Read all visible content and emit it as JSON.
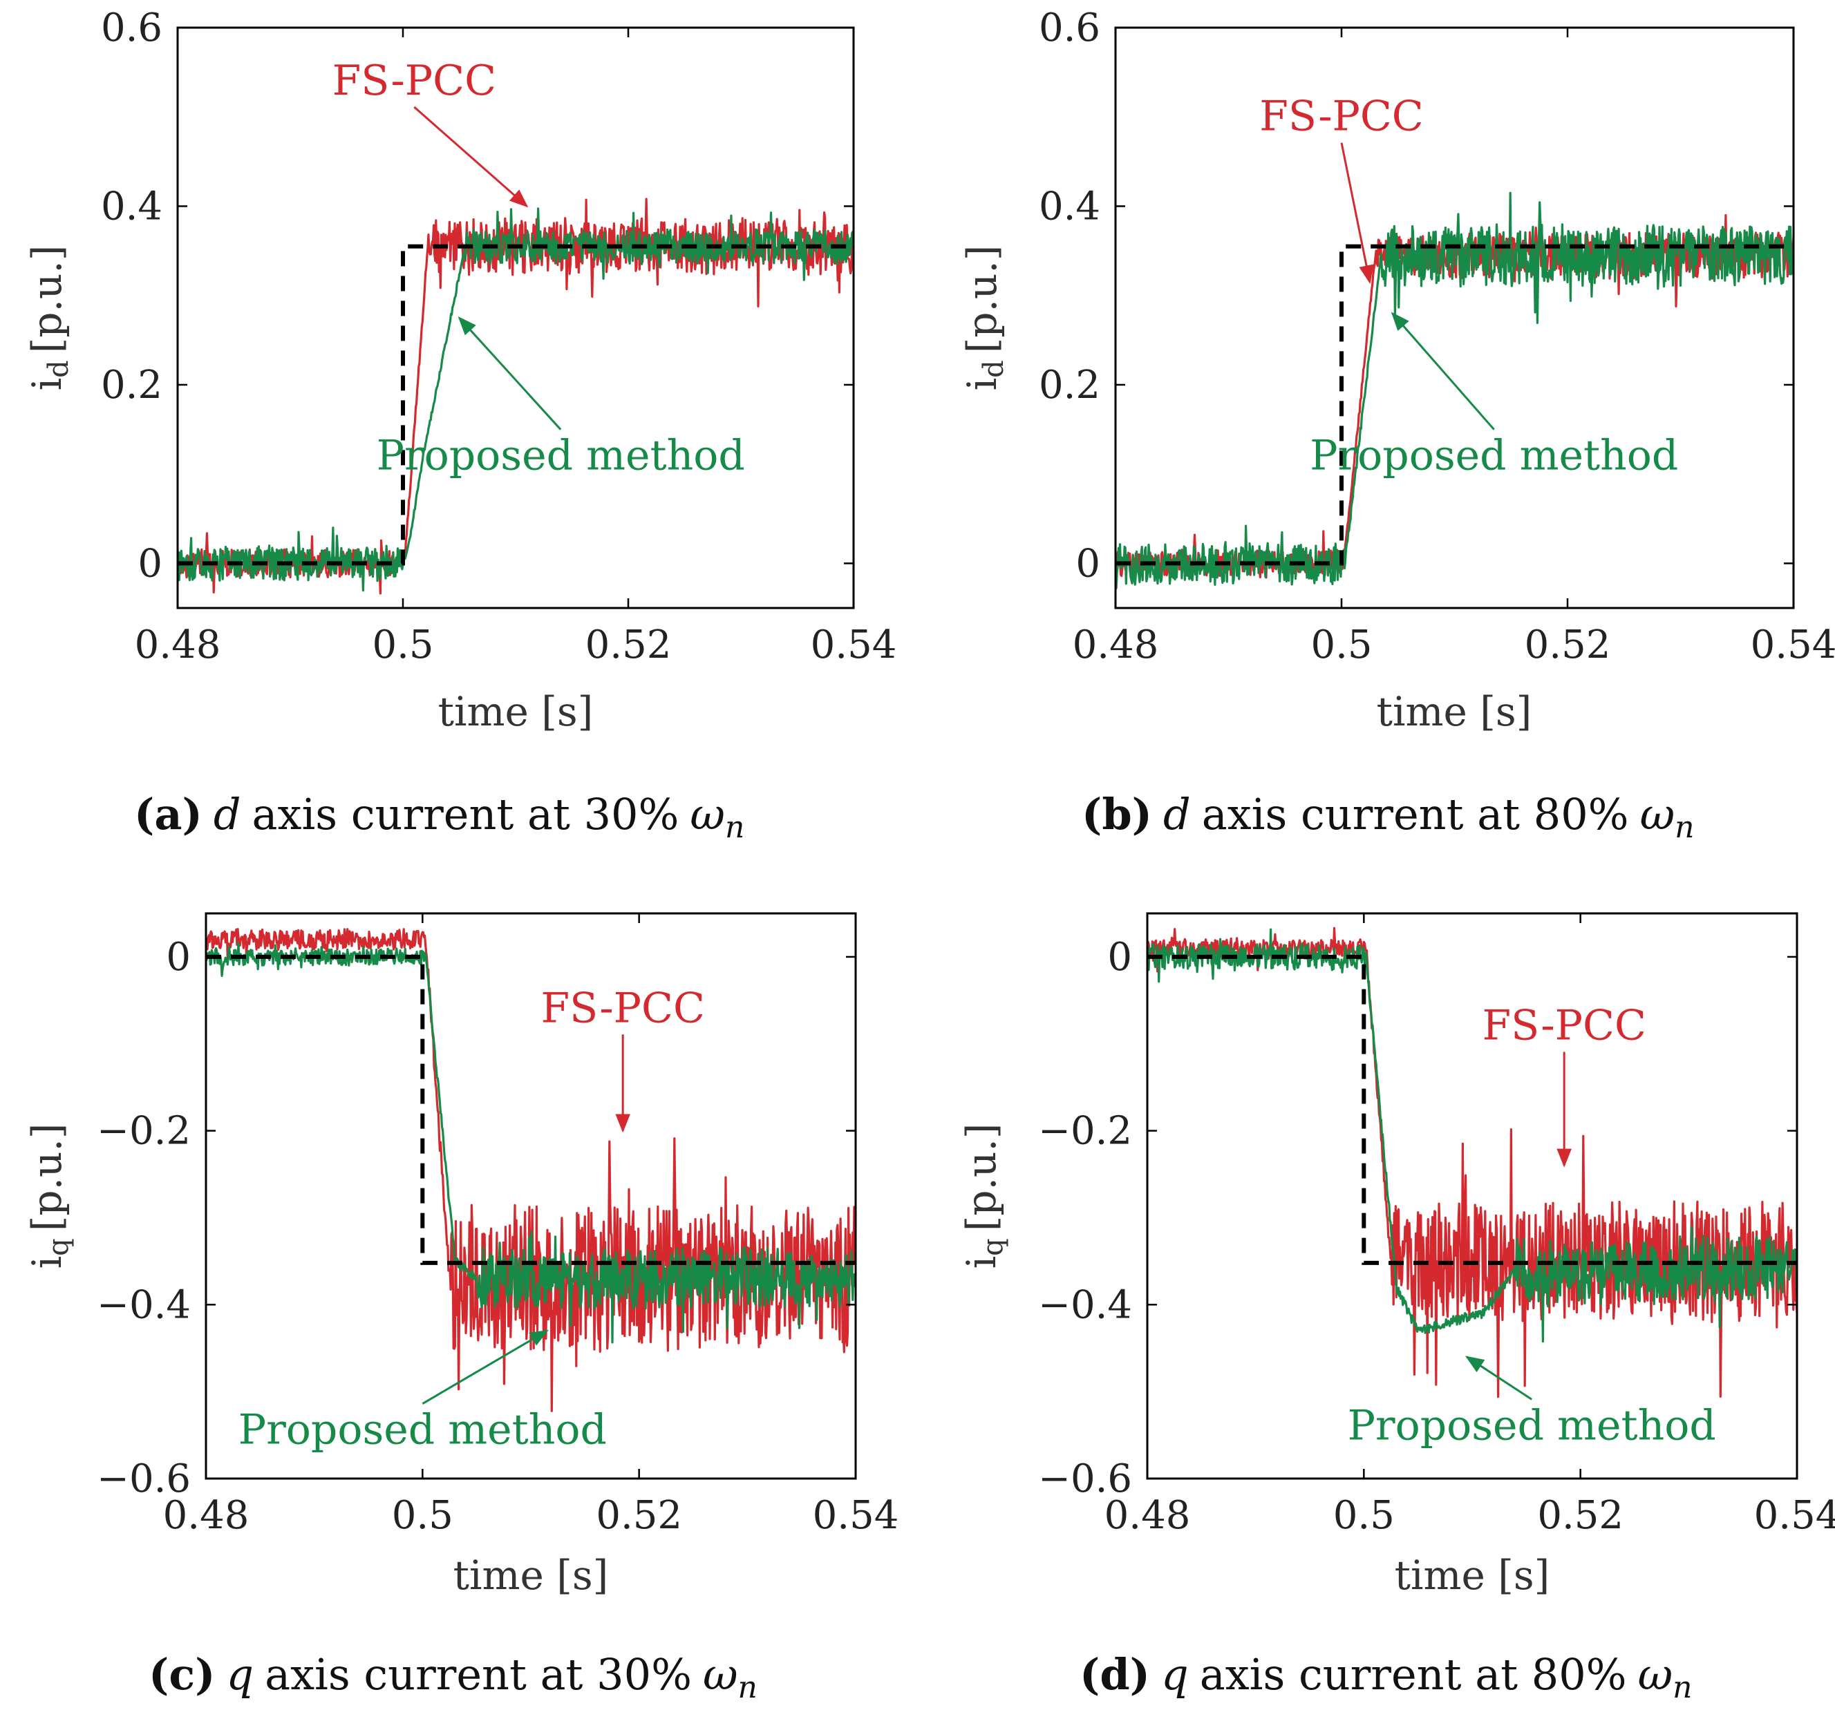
{
  "colors": {
    "fs_pcc": "#d42a2f",
    "proposed": "#168a48",
    "reference": "#000000",
    "frame": "#000000"
  },
  "chart_data": [
    {
      "id": "a",
      "type": "line",
      "caption": {
        "tag": "(a)",
        "axis": "d",
        "text": "axis current at 30%",
        "omega": "ω",
        "sub": "n"
      },
      "xlabel": "time [s]",
      "ylabel": {
        "main": "i",
        "sub": "d",
        "unit": "[p.u.]"
      },
      "xlim": [
        0.48,
        0.54
      ],
      "ylim": [
        -0.05,
        0.6
      ],
      "xticks": [
        0.48,
        0.5,
        0.52,
        0.54
      ],
      "xtick_labels": [
        "0.48",
        "0.5",
        "0.52",
        "0.54"
      ],
      "yticks": [
        0,
        0.2,
        0.4,
        0.6
      ],
      "ytick_labels": [
        "0",
        "0.2",
        "0.4",
        "0.6"
      ],
      "series": [
        {
          "name": "Reference",
          "style": "dashed",
          "x": [
            0.48,
            0.5,
            0.5,
            0.54
          ],
          "y": [
            0,
            0,
            0.355,
            0.355
          ]
        },
        {
          "name": "FS-PCC",
          "x": [
            0.48,
            0.4995,
            0.5002,
            0.5022,
            0.54
          ],
          "y": [
            0,
            0,
            0.01,
            0.355,
            0.355
          ],
          "noise": {
            "pre": 0.016,
            "post": 0.032
          }
        },
        {
          "name": "Proposed method",
          "x": [
            0.48,
            0.5,
            0.5005,
            0.5018,
            0.5055,
            0.54
          ],
          "y": [
            0,
            0,
            0.02,
            0.12,
            0.355,
            0.355
          ],
          "noise": {
            "pre": 0.02,
            "post": 0.02
          }
        }
      ],
      "annotations": [
        {
          "text": "FS-PCC",
          "series": "FS-PCC",
          "text_at": [
            0.501,
            0.525
          ],
          "arrow_to": [
            0.511,
            0.4
          ]
        },
        {
          "text": "Proposed method",
          "series": "Proposed method",
          "text_at": [
            0.514,
            0.105
          ],
          "arrow_to": [
            0.505,
            0.275
          ]
        }
      ]
    },
    {
      "id": "b",
      "type": "line",
      "caption": {
        "tag": "(b)",
        "axis": "d",
        "text": "axis current at 80%",
        "omega": "ω",
        "sub": "n"
      },
      "xlabel": "time [s]",
      "ylabel": {
        "main": "i",
        "sub": "d",
        "unit": "[p.u.]"
      },
      "xlim": [
        0.48,
        0.54
      ],
      "ylim": [
        -0.05,
        0.6
      ],
      "xticks": [
        0.48,
        0.5,
        0.52,
        0.54
      ],
      "xtick_labels": [
        "0.48",
        "0.5",
        "0.52",
        "0.54"
      ],
      "yticks": [
        0,
        0.2,
        0.4,
        0.6
      ],
      "ytick_labels": [
        "0",
        "0.2",
        "0.4",
        "0.6"
      ],
      "series": [
        {
          "name": "Reference",
          "style": "dashed",
          "x": [
            0.48,
            0.5,
            0.5,
            0.54
          ],
          "y": [
            0,
            0,
            0.355,
            0.355
          ]
        },
        {
          "name": "FS-PCC",
          "x": [
            0.48,
            0.5002,
            0.503,
            0.54
          ],
          "y": [
            0,
            0,
            0.345,
            0.345
          ],
          "noise": {
            "pre": 0.016,
            "post": 0.026
          }
        },
        {
          "name": "Proposed method",
          "x": [
            0.48,
            0.5003,
            0.5035,
            0.54
          ],
          "y": [
            0,
            0,
            0.345,
            0.345
          ],
          "noise": {
            "pre": 0.024,
            "post": 0.035
          }
        }
      ],
      "annotations": [
        {
          "text": "FS-PCC",
          "series": "FS-PCC",
          "text_at": [
            0.5,
            0.485
          ],
          "arrow_to": [
            0.5025,
            0.315
          ]
        },
        {
          "text": "Proposed method",
          "series": "Proposed method",
          "text_at": [
            0.5135,
            0.105
          ],
          "arrow_to": [
            0.5045,
            0.28
          ]
        }
      ]
    },
    {
      "id": "c",
      "type": "line",
      "caption": {
        "tag": "(c)",
        "axis": "q",
        "text": "axis current at 30%",
        "omega": "ω",
        "sub": "n"
      },
      "xlabel": "time [s]",
      "ylabel": {
        "main": "i",
        "sub": "q",
        "unit": "[p.u.]"
      },
      "xlim": [
        0.48,
        0.54
      ],
      "ylim": [
        -0.6,
        0.05
      ],
      "xticks": [
        0.48,
        0.5,
        0.52,
        0.54
      ],
      "xtick_labels": [
        "0.48",
        "0.5",
        "0.52",
        "0.54"
      ],
      "yticks": [
        0,
        -0.2,
        -0.4,
        -0.6
      ],
      "ytick_labels": [
        "0",
        "−0.2",
        "−0.4",
        "−0.6"
      ],
      "series": [
        {
          "name": "Reference",
          "style": "dashed",
          "x": [
            0.48,
            0.5,
            0.5,
            0.54
          ],
          "y": [
            0,
            0,
            -0.352,
            -0.352
          ]
        },
        {
          "name": "FS-PCC",
          "x": [
            0.48,
            0.5003,
            0.5025,
            0.54
          ],
          "y": [
            0.02,
            0.02,
            -0.37,
            -0.37
          ],
          "noise": {
            "pre": 0.012,
            "post": 0.085
          }
        },
        {
          "name": "Proposed method",
          "x": [
            0.48,
            0.5003,
            0.503,
            0.505,
            0.54
          ],
          "y": [
            0,
            0,
            -0.35,
            -0.37,
            -0.37
          ],
          "noise": {
            "pre": 0.01,
            "post": 0.035
          }
        }
      ],
      "annotations": [
        {
          "text": "FS-PCC",
          "series": "FS-PCC",
          "text_at": [
            0.5185,
            -0.075
          ],
          "arrow_to": [
            0.5185,
            -0.2
          ]
        },
        {
          "text": "Proposed method",
          "series": "Proposed method",
          "text_at": [
            0.5,
            -0.56
          ],
          "arrow_to": [
            0.5115,
            -0.43
          ]
        }
      ]
    },
    {
      "id": "d",
      "type": "line",
      "caption": {
        "tag": "(d)",
        "axis": "q",
        "text": "axis current at 80%",
        "omega": "ω",
        "sub": "n"
      },
      "xlabel": "time [s]",
      "ylabel": {
        "main": "i",
        "sub": "q",
        "unit": "[p.u.]"
      },
      "xlim": [
        0.48,
        0.54
      ],
      "ylim": [
        -0.6,
        0.05
      ],
      "xticks": [
        0.48,
        0.5,
        0.52,
        0.54
      ],
      "xtick_labels": [
        "0.48",
        "0.5",
        "0.52",
        "0.54"
      ],
      "yticks": [
        0,
        -0.2,
        -0.4,
        -0.6
      ],
      "ytick_labels": [
        "0",
        "−0.2",
        "−0.4",
        "−0.6"
      ],
      "series": [
        {
          "name": "Reference",
          "style": "dashed",
          "x": [
            0.48,
            0.5,
            0.5,
            0.54
          ],
          "y": [
            0,
            0,
            -0.352,
            -0.352
          ]
        },
        {
          "name": "FS-PCC",
          "x": [
            0.48,
            0.5002,
            0.5025,
            0.54
          ],
          "y": [
            0.01,
            0.01,
            -0.35,
            -0.35
          ],
          "noise": {
            "pre": 0.012,
            "post": 0.07
          }
        },
        {
          "name": "Proposed method",
          "x": [
            0.48,
            0.5002,
            0.503,
            0.505,
            0.511,
            0.514,
            0.54
          ],
          "y": [
            0,
            0,
            -0.38,
            -0.43,
            -0.41,
            -0.36,
            -0.36
          ],
          "noise": {
            "pre": 0.015,
            "post": 0.04
          }
        }
      ],
      "annotations": [
        {
          "text": "FS-PCC",
          "series": "FS-PCC",
          "text_at": [
            0.5185,
            -0.095
          ],
          "arrow_to": [
            0.5185,
            -0.24
          ]
        },
        {
          "text": "Proposed method",
          "series": "Proposed method",
          "text_at": [
            0.5155,
            -0.555
          ],
          "arrow_to": [
            0.5095,
            -0.46
          ]
        }
      ]
    }
  ]
}
